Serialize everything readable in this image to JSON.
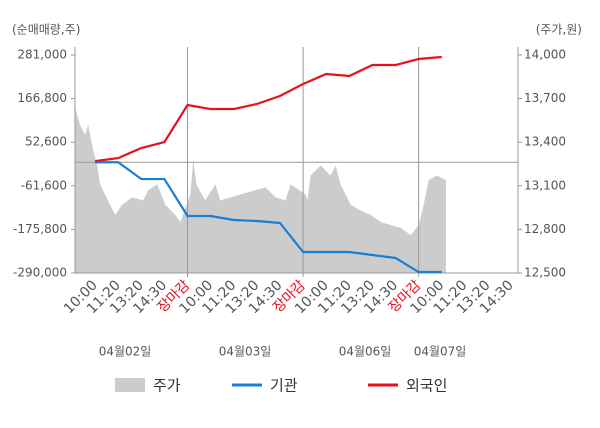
{
  "chart_data": {
    "type": "line",
    "y_label": "(순매매량,주)",
    "y2_label": "(주가,원)",
    "categories": [
      "10:00",
      "11:20",
      "13:20",
      "14:30",
      "장마감",
      "10:00",
      "11:20",
      "13:20",
      "14:30",
      "장마감",
      "10:00",
      "11:20",
      "13:20",
      "14:30",
      "장마감",
      "10:00",
      "11:20",
      "13:20",
      "14:30"
    ],
    "dates": [
      "04월02일",
      "04월03일",
      "04월06일",
      "04월07일"
    ],
    "xlim": [
      -0.87,
      18.3
    ],
    "xgrid": [
      4,
      9,
      14
    ],
    "xgrid_label_color": "#e8101e",
    "ylim": [
      -290000,
      281000
    ],
    "yticks": [
      {
        "value": 281000,
        "label": "281,000"
      },
      {
        "value": 166800,
        "label": "166,800"
      },
      {
        "value": 52600,
        "label": "52,600"
      },
      {
        "value": -61600,
        "label": "-61,600"
      },
      {
        "value": -175800,
        "label": "-175,800"
      },
      {
        "value": -290000,
        "label": "-290,000"
      }
    ],
    "y2lim": [
      12500,
      14000
    ],
    "y2ticks": [
      {
        "value": 14000,
        "label": "14,000"
      },
      {
        "value": 13700,
        "label": "13,700"
      },
      {
        "value": 13400,
        "label": "13,400"
      },
      {
        "value": 13100,
        "label": "13,100"
      },
      {
        "value": 12800,
        "label": "12,800"
      },
      {
        "value": 12500,
        "label": "12,500"
      }
    ],
    "price": {
      "name": "주가",
      "color": "#cccccc",
      "axis": "y2",
      "x": [
        -0.87,
        -0.65,
        -0.43,
        -0.3,
        -0.09,
        0.09,
        0.22,
        0.43,
        0.65,
        0.87,
        1.17,
        1.6,
        2.08,
        2.3,
        2.69,
        3.04,
        3.47,
        3.69,
        4.12,
        4.25,
        4.38,
        4.77,
        5.2,
        5.42,
        6.29,
        6.94,
        7.37,
        7.81,
        8.24,
        8.46,
        9.11,
        9.19,
        9.32,
        9.76,
        10.19,
        10.41,
        10.62,
        11.06,
        11.49,
        11.93,
        12.36,
        12.79,
        13.23,
        13.66,
        14.01,
        14.22,
        14.44,
        14.79,
        15.18
      ],
      "values": [
        13640,
        13520,
        13450,
        13520,
        13350,
        13240,
        13110,
        13040,
        12970,
        12900,
        12970,
        13020,
        13000,
        13070,
        13110,
        12970,
        12900,
        12850,
        13040,
        13280,
        13110,
        13000,
        13110,
        13000,
        13040,
        13070,
        13090,
        13020,
        13000,
        13110,
        13040,
        13000,
        13170,
        13240,
        13170,
        13240,
        13110,
        12970,
        12930,
        12900,
        12850,
        12830,
        12810,
        12760,
        12830,
        12970,
        13140,
        13170,
        13140
      ]
    },
    "series": [
      {
        "name": "기관",
        "color": "#1a7fd4",
        "values": [
          0,
          0,
          -44000,
          -44000,
          -140700,
          -140700,
          -151200,
          -153800,
          -159000,
          -235000,
          -235000,
          -235000,
          -242900,
          -250700,
          -287400,
          -287400,
          null,
          null,
          null
        ]
      },
      {
        "name": "외국인",
        "color": "#e8101e",
        "values": [
          3000,
          11000,
          37400,
          53000,
          150000,
          139500,
          139500,
          152700,
          173600,
          205000,
          231200,
          226000,
          254800,
          254800,
          270500,
          275700,
          null,
          null,
          null
        ]
      }
    ]
  }
}
